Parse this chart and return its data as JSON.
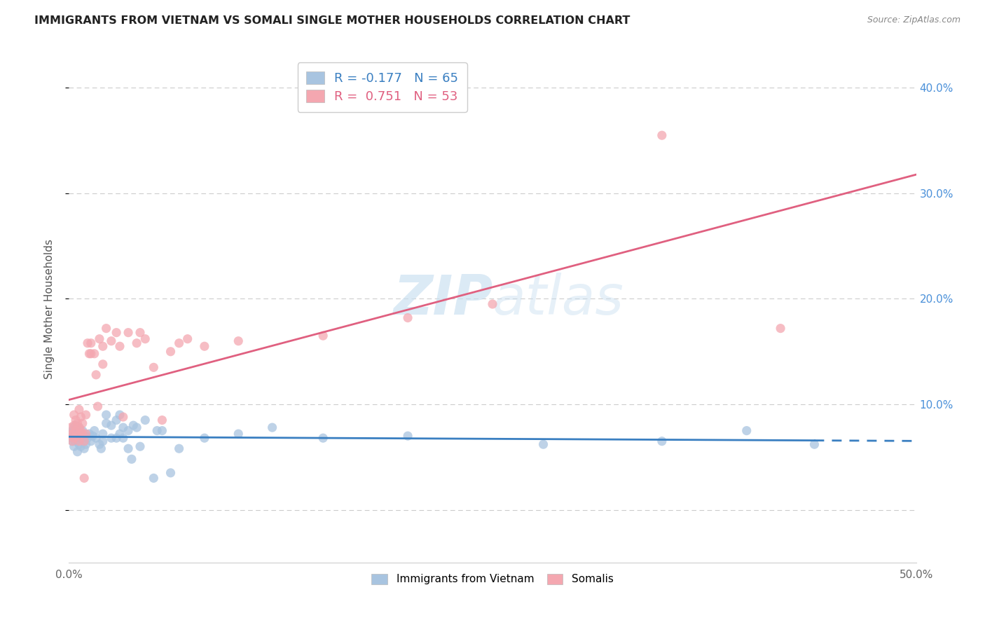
{
  "title": "IMMIGRANTS FROM VIETNAM VS SOMALI SINGLE MOTHER HOUSEHOLDS CORRELATION CHART",
  "source": "Source: ZipAtlas.com",
  "ylabel": "Single Mother Households",
  "xlim": [
    0.0,
    0.5
  ],
  "ylim": [
    -0.05,
    0.43
  ],
  "x_ticks": [
    0.0,
    0.1,
    0.2,
    0.3,
    0.4,
    0.5
  ],
  "x_tick_labels": [
    "0.0%",
    "",
    "",
    "",
    "",
    "50.0%"
  ],
  "y_ticks": [
    0.0,
    0.1,
    0.2,
    0.3,
    0.4
  ],
  "y_tick_labels_right": [
    "",
    "10.0%",
    "20.0%",
    "30.0%",
    "40.0%"
  ],
  "R_vietnam": -0.177,
  "N_vietnam": 65,
  "R_somali": 0.751,
  "N_somali": 53,
  "color_vietnam": "#a8c4e0",
  "color_somali": "#f4a7b0",
  "line_color_vietnam": "#3a7fc1",
  "line_color_somali": "#e06080",
  "watermark": "ZIPatlas",
  "vietnam_scatter": [
    [
      0.001,
      0.072
    ],
    [
      0.001,
      0.068
    ],
    [
      0.002,
      0.075
    ],
    [
      0.002,
      0.065
    ],
    [
      0.003,
      0.078
    ],
    [
      0.003,
      0.06
    ],
    [
      0.003,
      0.07
    ],
    [
      0.004,
      0.072
    ],
    [
      0.004,
      0.065
    ],
    [
      0.004,
      0.08
    ],
    [
      0.005,
      0.068
    ],
    [
      0.005,
      0.055
    ],
    [
      0.005,
      0.075
    ],
    [
      0.006,
      0.07
    ],
    [
      0.006,
      0.062
    ],
    [
      0.006,
      0.078
    ],
    [
      0.007,
      0.072
    ],
    [
      0.007,
      0.06
    ],
    [
      0.008,
      0.068
    ],
    [
      0.008,
      0.075
    ],
    [
      0.009,
      0.065
    ],
    [
      0.009,
      0.058
    ],
    [
      0.01,
      0.07
    ],
    [
      0.01,
      0.062
    ],
    [
      0.011,
      0.068
    ],
    [
      0.012,
      0.072
    ],
    [
      0.013,
      0.065
    ],
    [
      0.014,
      0.07
    ],
    [
      0.015,
      0.075
    ],
    [
      0.016,
      0.068
    ],
    [
      0.018,
      0.062
    ],
    [
      0.019,
      0.058
    ],
    [
      0.02,
      0.072
    ],
    [
      0.02,
      0.065
    ],
    [
      0.022,
      0.09
    ],
    [
      0.022,
      0.082
    ],
    [
      0.025,
      0.08
    ],
    [
      0.025,
      0.068
    ],
    [
      0.028,
      0.085
    ],
    [
      0.028,
      0.068
    ],
    [
      0.03,
      0.09
    ],
    [
      0.03,
      0.072
    ],
    [
      0.032,
      0.078
    ],
    [
      0.032,
      0.068
    ],
    [
      0.035,
      0.075
    ],
    [
      0.035,
      0.058
    ],
    [
      0.037,
      0.048
    ],
    [
      0.038,
      0.08
    ],
    [
      0.04,
      0.078
    ],
    [
      0.042,
      0.06
    ],
    [
      0.045,
      0.085
    ],
    [
      0.05,
      0.03
    ],
    [
      0.052,
      0.075
    ],
    [
      0.055,
      0.075
    ],
    [
      0.06,
      0.035
    ],
    [
      0.065,
      0.058
    ],
    [
      0.08,
      0.068
    ],
    [
      0.1,
      0.072
    ],
    [
      0.12,
      0.078
    ],
    [
      0.15,
      0.068
    ],
    [
      0.2,
      0.07
    ],
    [
      0.28,
      0.062
    ],
    [
      0.35,
      0.065
    ],
    [
      0.4,
      0.075
    ],
    [
      0.44,
      0.062
    ]
  ],
  "somali_scatter": [
    [
      0.001,
      0.07
    ],
    [
      0.001,
      0.078
    ],
    [
      0.002,
      0.065
    ],
    [
      0.002,
      0.072
    ],
    [
      0.003,
      0.08
    ],
    [
      0.003,
      0.068
    ],
    [
      0.003,
      0.09
    ],
    [
      0.004,
      0.075
    ],
    [
      0.004,
      0.085
    ],
    [
      0.005,
      0.07
    ],
    [
      0.005,
      0.082
    ],
    [
      0.006,
      0.078
    ],
    [
      0.006,
      0.065
    ],
    [
      0.006,
      0.095
    ],
    [
      0.007,
      0.088
    ],
    [
      0.007,
      0.075
    ],
    [
      0.008,
      0.082
    ],
    [
      0.008,
      0.072
    ],
    [
      0.009,
      0.065
    ],
    [
      0.009,
      0.03
    ],
    [
      0.01,
      0.09
    ],
    [
      0.01,
      0.072
    ],
    [
      0.011,
      0.158
    ],
    [
      0.012,
      0.148
    ],
    [
      0.013,
      0.148
    ],
    [
      0.013,
      0.158
    ],
    [
      0.015,
      0.148
    ],
    [
      0.016,
      0.128
    ],
    [
      0.017,
      0.098
    ],
    [
      0.018,
      0.162
    ],
    [
      0.02,
      0.155
    ],
    [
      0.02,
      0.138
    ],
    [
      0.022,
      0.172
    ],
    [
      0.025,
      0.16
    ],
    [
      0.028,
      0.168
    ],
    [
      0.03,
      0.155
    ],
    [
      0.032,
      0.088
    ],
    [
      0.035,
      0.168
    ],
    [
      0.04,
      0.158
    ],
    [
      0.042,
      0.168
    ],
    [
      0.045,
      0.162
    ],
    [
      0.05,
      0.135
    ],
    [
      0.055,
      0.085
    ],
    [
      0.06,
      0.15
    ],
    [
      0.065,
      0.158
    ],
    [
      0.07,
      0.162
    ],
    [
      0.08,
      0.155
    ],
    [
      0.1,
      0.16
    ],
    [
      0.15,
      0.165
    ],
    [
      0.2,
      0.182
    ],
    [
      0.25,
      0.195
    ],
    [
      0.35,
      0.355
    ],
    [
      0.42,
      0.172
    ]
  ]
}
